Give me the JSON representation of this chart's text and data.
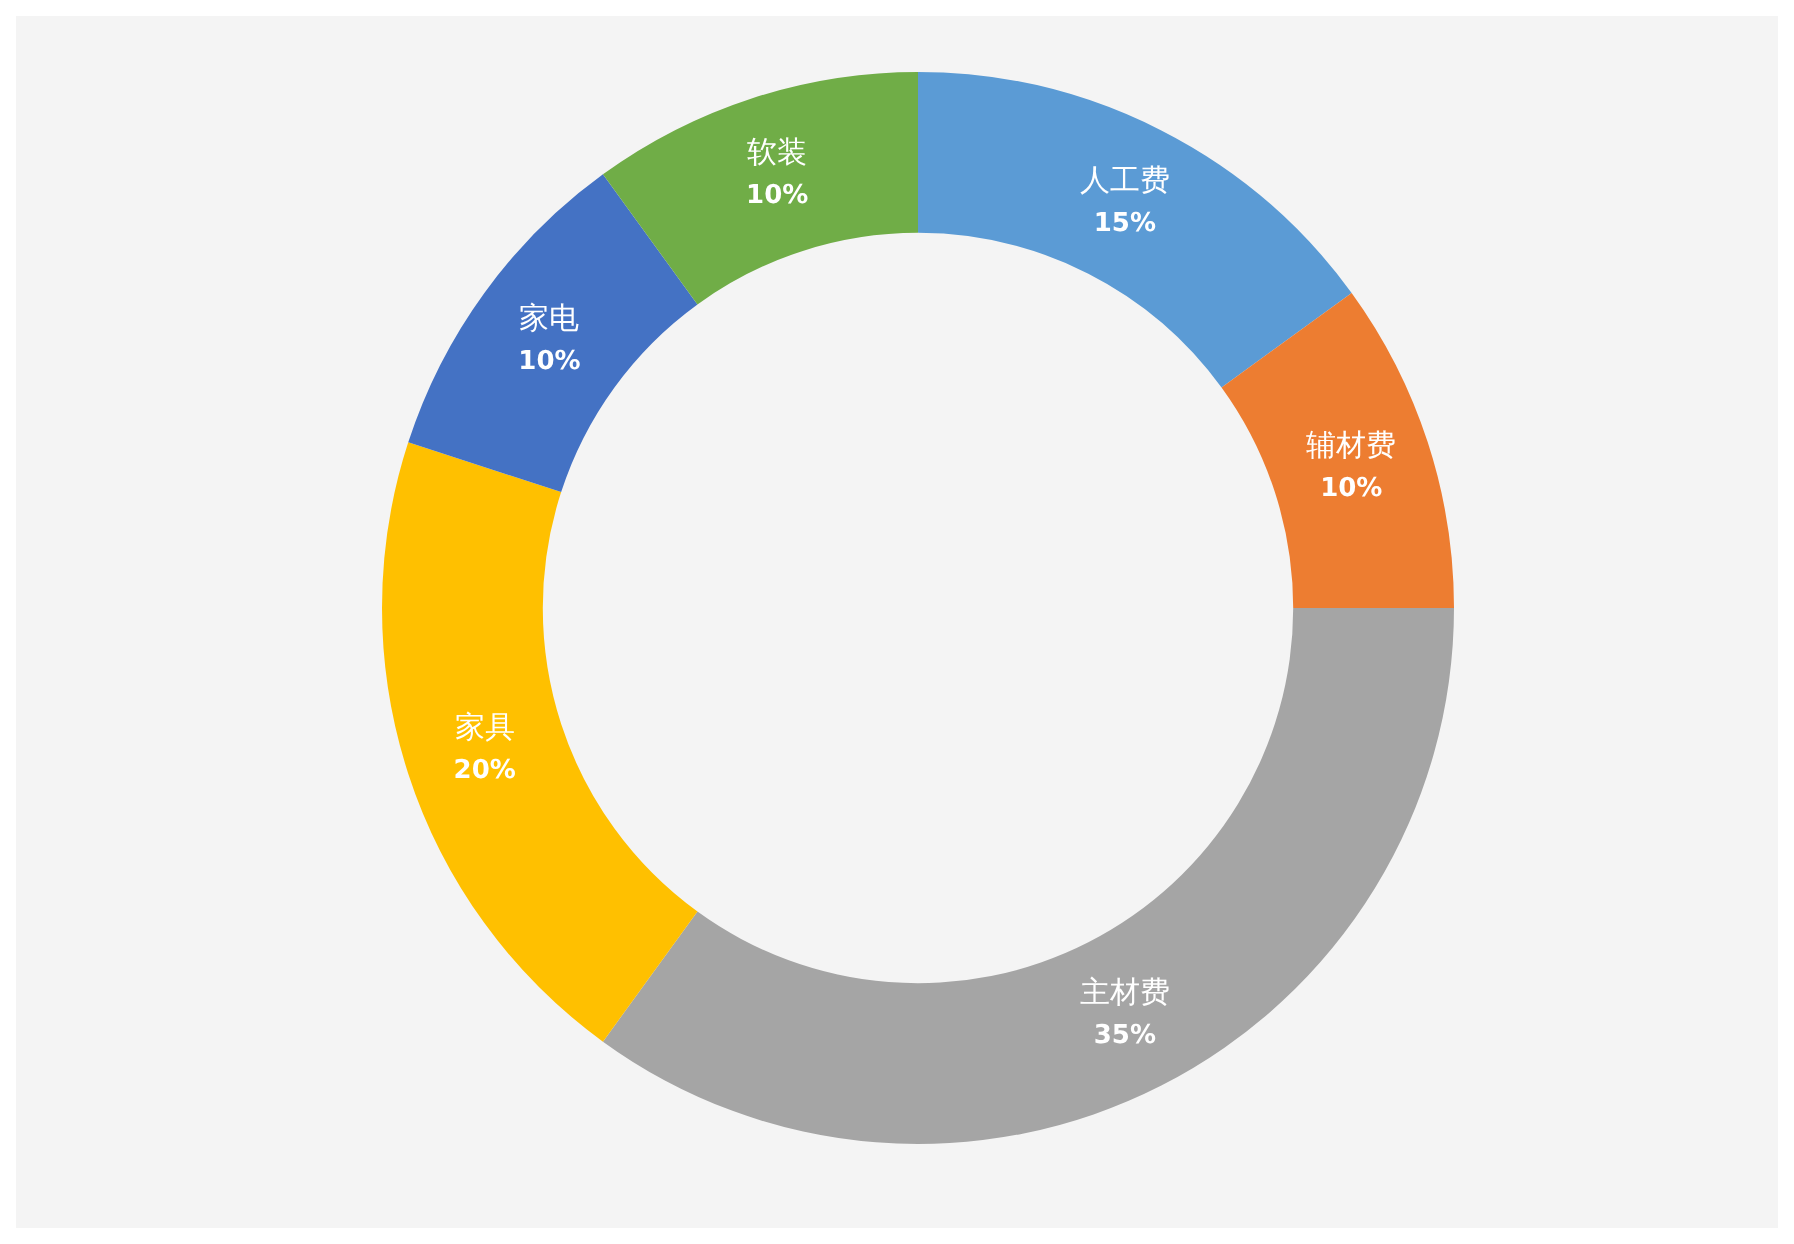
{
  "chart_data": {
    "type": "donut",
    "categories": [
      "人工费",
      "辅材费",
      "主材费",
      "家具",
      "家电",
      "软装"
    ],
    "values": [
      15,
      10,
      35,
      20,
      10,
      10
    ],
    "colors": [
      "#5b9bd5",
      "#ed7d31",
      "#a5a5a5",
      "#ffc000",
      "#4472c4",
      "#70ad47"
    ],
    "value_labels": [
      "15%",
      "10%",
      "35%",
      "20%",
      "10%",
      "10%"
    ],
    "legend": false
  }
}
